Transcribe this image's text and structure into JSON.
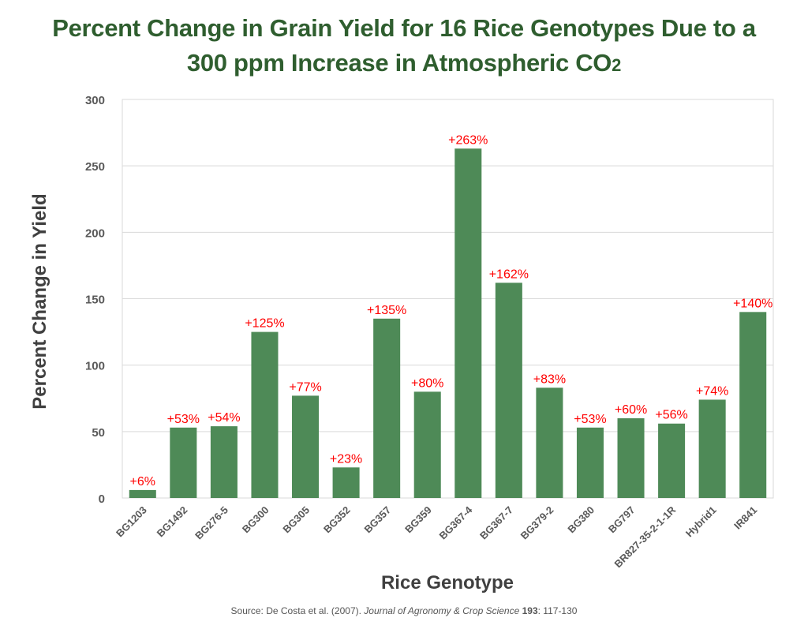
{
  "title_line1": "Percent Change in Grain Yield  for 16 Rice Genotypes Due to a",
  "title_line2_main": "300 ppm Increase in Atmospheric CO",
  "title_line2_sub": "2",
  "source": {
    "prefix": "Source: De Costa et al. (2007). ",
    "journal": "Journal of Agronomy & Crop Science",
    "volume": " 193",
    "pages": ": 117-130"
  },
  "colors": {
    "bar": "#4e8a57",
    "label": "#ff0000",
    "title": "#2f5e2f",
    "grid": "#d9d9d9"
  },
  "chart_data": {
    "type": "bar",
    "title": "Percent Change in Grain Yield  for 16 Rice Genotypes Due to a 300 ppm Increase in Atmospheric CO2",
    "xlabel": "Rice Genotype",
    "ylabel": "Percent Change in Yield",
    "ylim": [
      0,
      300
    ],
    "yticks": [
      0,
      50,
      100,
      150,
      200,
      250,
      300
    ],
    "grid": true,
    "categories": [
      "BG1203",
      "BG1492",
      "BG276-5",
      "BG300",
      "BG305",
      "BG352",
      "BG357",
      "BG359",
      "BG367-4",
      "BG367-7",
      "BG379-2",
      "BG380",
      "BG797",
      "BR827-35-2-1-1R",
      "Hybrid1",
      "IR841"
    ],
    "values": [
      6,
      53,
      54,
      125,
      77,
      23,
      135,
      80,
      263,
      162,
      83,
      53,
      60,
      56,
      74,
      140
    ],
    "data_labels": [
      "+6%",
      "+53%",
      "+54%",
      "+125%",
      "+77%",
      "+23%",
      "+135%",
      "+80%",
      "+263%",
      "+162%",
      "+83%",
      "+53%",
      "+60%",
      "+56%",
      "+74%",
      "+140%"
    ]
  }
}
